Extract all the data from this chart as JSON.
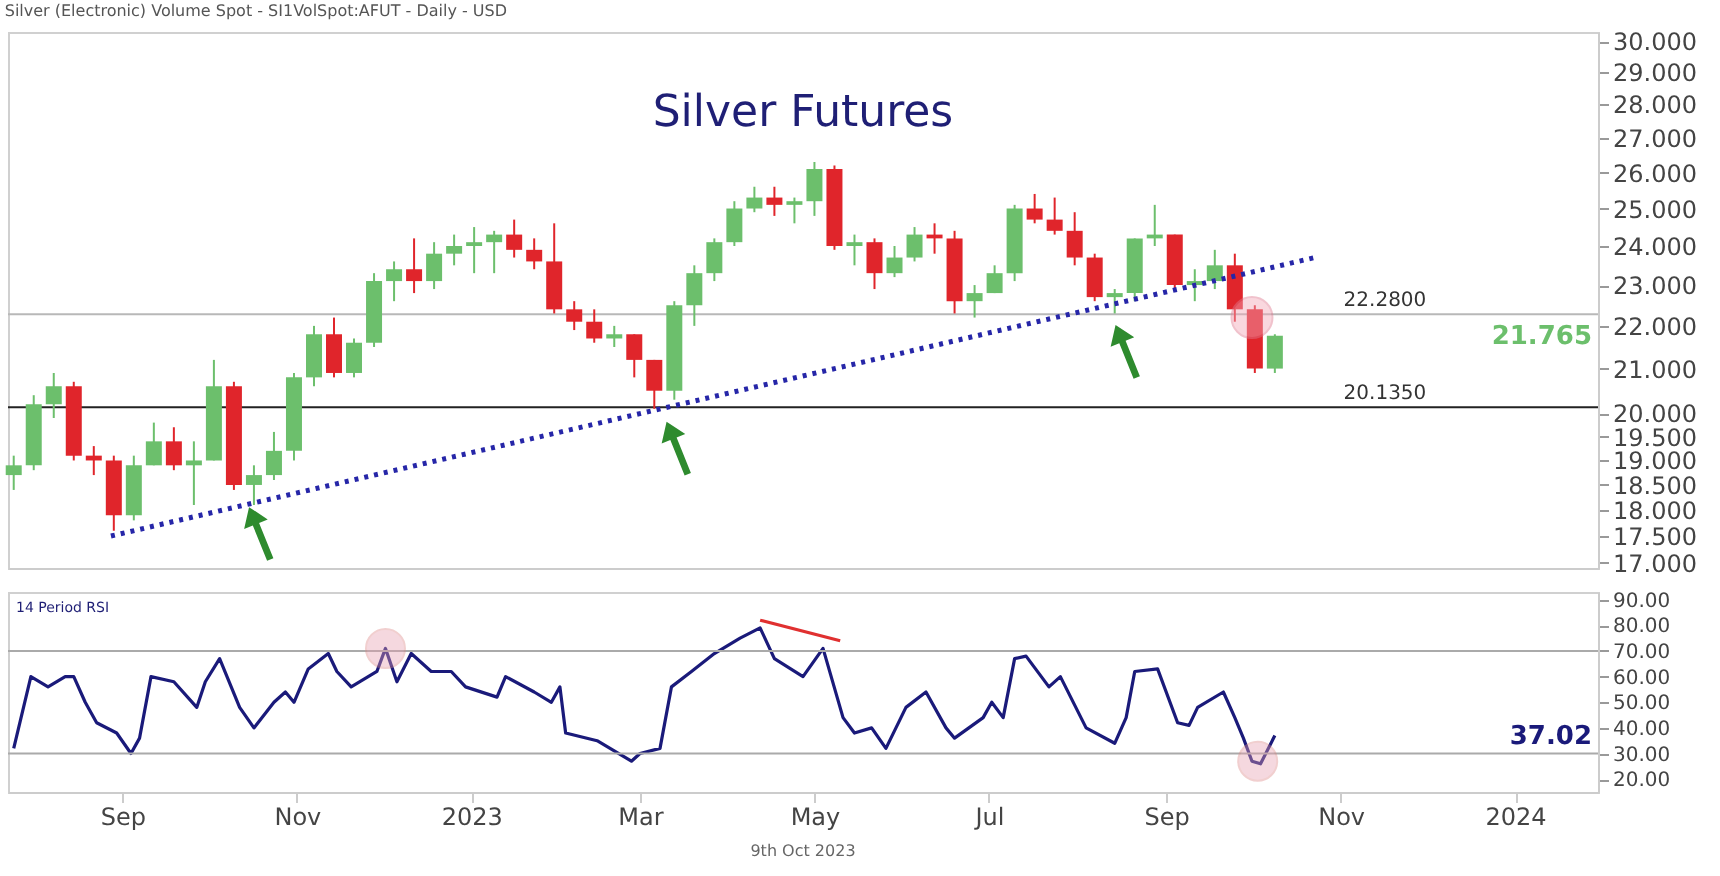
{
  "chart_data": [
    {
      "type": "candlestick",
      "subtitle": "Silver (Electronic) Volume Spot - SI1VolSpot:AFUT - Daily - USD",
      "title": "Silver Futures",
      "x": [
        "2022-07-25",
        "2022-08-01",
        "2022-08-08",
        "2022-08-15",
        "2022-08-22",
        "2022-08-29",
        "2022-09-05",
        "2022-09-12",
        "2022-09-19",
        "2022-09-26",
        "2022-10-03",
        "2022-10-10",
        "2022-10-17",
        "2022-10-24",
        "2022-10-31",
        "2022-11-07",
        "2022-11-14",
        "2022-11-21",
        "2022-11-28",
        "2022-12-05",
        "2022-12-12",
        "2022-12-19",
        "2022-12-26",
        "2023-01-02",
        "2023-01-09",
        "2023-01-16",
        "2023-01-23",
        "2023-01-30",
        "2023-02-06",
        "2023-02-13",
        "2023-02-20",
        "2023-02-27",
        "2023-03-06",
        "2023-03-13",
        "2023-03-20",
        "2023-03-27",
        "2023-04-03",
        "2023-04-10",
        "2023-04-17",
        "2023-04-24",
        "2023-05-01",
        "2023-05-08",
        "2023-05-15",
        "2023-05-22",
        "2023-05-29",
        "2023-06-05",
        "2023-06-12",
        "2023-06-19",
        "2023-06-26",
        "2023-07-03",
        "2023-07-10",
        "2023-07-17",
        "2023-07-24",
        "2023-07-31",
        "2023-08-07",
        "2023-08-14",
        "2023-08-21",
        "2023-08-28",
        "2023-09-04",
        "2023-09-11",
        "2023-09-18",
        "2023-09-25",
        "2023-10-02",
        "2023-10-09"
      ],
      "ohlc": [
        [
          18.7,
          19.1,
          18.4,
          18.9
        ],
        [
          18.9,
          20.4,
          18.8,
          20.2
        ],
        [
          20.2,
          20.9,
          19.9,
          20.6
        ],
        [
          20.6,
          20.7,
          19.0,
          19.1
        ],
        [
          19.1,
          19.3,
          18.7,
          19.0
        ],
        [
          19.0,
          19.1,
          17.6,
          17.9
        ],
        [
          17.9,
          19.1,
          17.8,
          18.9
        ],
        [
          18.9,
          19.8,
          18.9,
          19.4
        ],
        [
          19.4,
          19.7,
          18.8,
          18.9
        ],
        [
          18.9,
          19.4,
          18.1,
          19.0
        ],
        [
          19.0,
          21.2,
          19.0,
          20.6
        ],
        [
          20.6,
          20.7,
          18.4,
          18.5
        ],
        [
          18.5,
          18.9,
          18.1,
          18.7
        ],
        [
          18.7,
          19.6,
          18.6,
          19.2
        ],
        [
          19.2,
          20.9,
          19.0,
          20.8
        ],
        [
          20.8,
          22.0,
          20.6,
          21.8
        ],
        [
          21.8,
          22.2,
          20.8,
          20.9
        ],
        [
          20.9,
          21.7,
          20.8,
          21.6
        ],
        [
          21.6,
          23.3,
          21.5,
          23.1
        ],
        [
          23.1,
          23.6,
          22.6,
          23.4
        ],
        [
          23.4,
          24.2,
          22.8,
          23.1
        ],
        [
          23.1,
          24.1,
          22.9,
          23.8
        ],
        [
          23.8,
          24.3,
          23.5,
          24.0
        ],
        [
          24.0,
          24.5,
          23.3,
          24.1
        ],
        [
          24.1,
          24.4,
          23.3,
          24.3
        ],
        [
          24.3,
          24.7,
          23.7,
          23.9
        ],
        [
          23.9,
          24.2,
          23.4,
          23.6
        ],
        [
          23.6,
          24.6,
          22.3,
          22.4
        ],
        [
          22.4,
          22.6,
          21.9,
          22.1
        ],
        [
          22.1,
          22.4,
          21.6,
          21.7
        ],
        [
          21.7,
          22.0,
          21.5,
          21.8
        ],
        [
          21.8,
          21.8,
          20.8,
          21.2
        ],
        [
          21.2,
          21.2,
          20.1,
          20.5
        ],
        [
          20.5,
          22.6,
          20.3,
          22.5
        ],
        [
          22.5,
          23.5,
          22.0,
          23.3
        ],
        [
          23.3,
          24.2,
          23.1,
          24.1
        ],
        [
          24.1,
          25.2,
          24.0,
          25.0
        ],
        [
          25.0,
          25.6,
          24.9,
          25.3
        ],
        [
          25.3,
          25.6,
          24.8,
          25.1
        ],
        [
          25.1,
          25.3,
          24.6,
          25.2
        ],
        [
          25.2,
          26.3,
          24.8,
          26.1
        ],
        [
          26.1,
          26.2,
          23.9,
          24.0
        ],
        [
          24.0,
          24.3,
          23.5,
          24.1
        ],
        [
          24.1,
          24.2,
          22.9,
          23.3
        ],
        [
          23.3,
          24.0,
          23.2,
          23.7
        ],
        [
          23.7,
          24.5,
          23.6,
          24.3
        ],
        [
          24.3,
          24.6,
          23.8,
          24.2
        ],
        [
          24.2,
          24.4,
          22.3,
          22.6
        ],
        [
          22.6,
          23.0,
          22.2,
          22.8
        ],
        [
          22.8,
          23.5,
          22.8,
          23.3
        ],
        [
          23.3,
          25.1,
          23.1,
          25.0
        ],
        [
          25.0,
          25.4,
          24.6,
          24.7
        ],
        [
          24.7,
          25.3,
          24.3,
          24.4
        ],
        [
          24.4,
          24.9,
          23.5,
          23.7
        ],
        [
          23.7,
          23.8,
          22.6,
          22.7
        ],
        [
          22.7,
          22.9,
          22.3,
          22.8
        ],
        [
          22.8,
          24.2,
          22.6,
          24.2
        ],
        [
          24.2,
          25.1,
          24.0,
          24.3
        ],
        [
          24.3,
          24.3,
          22.9,
          23.0
        ],
        [
          23.0,
          23.4,
          22.6,
          23.1
        ],
        [
          23.1,
          23.9,
          22.9,
          23.5
        ],
        [
          23.5,
          23.8,
          22.1,
          22.4
        ],
        [
          22.4,
          22.5,
          20.9,
          21.0
        ],
        [
          21.0,
          21.8,
          20.9,
          21.765
        ]
      ],
      "colors": [
        "#6cbf6c",
        "#6cbf6c",
        "#6cbf6c",
        "#e0252b",
        "#e0252b",
        "#e0252b",
        "#6cbf6c",
        "#6cbf6c",
        "#e0252b",
        "#6cbf6c",
        "#6cbf6c",
        "#e0252b",
        "#6cbf6c",
        "#6cbf6c",
        "#6cbf6c",
        "#6cbf6c",
        "#e0252b",
        "#6cbf6c",
        "#6cbf6c",
        "#6cbf6c",
        "#e0252b",
        "#6cbf6c",
        "#6cbf6c",
        "#6cbf6c",
        "#6cbf6c",
        "#e0252b",
        "#e0252b",
        "#e0252b",
        "#e0252b",
        "#e0252b",
        "#6cbf6c",
        "#e0252b",
        "#e0252b",
        "#6cbf6c",
        "#6cbf6c",
        "#6cbf6c",
        "#6cbf6c",
        "#6cbf6c",
        "#e0252b",
        "#6cbf6c",
        "#6cbf6c",
        "#e0252b",
        "#6cbf6c",
        "#e0252b",
        "#6cbf6c",
        "#6cbf6c",
        "#e0252b",
        "#e0252b",
        "#6cbf6c",
        "#6cbf6c",
        "#6cbf6c",
        "#e0252b",
        "#e0252b",
        "#e0252b",
        "#e0252b",
        "#6cbf6c",
        "#6cbf6c",
        "#6cbf6c",
        "#e0252b",
        "#6cbf6c",
        "#6cbf6c",
        "#e0252b",
        "#e0252b",
        "#6cbf6c"
      ],
      "series": [
        {
          "type": "line",
          "x": [
            "2022-08-28",
            "2023-10-23"
          ],
          "values": [
            17.5,
            23.7
          ],
          "color": "#2626a8",
          "line_style": "dotted"
        }
      ],
      "log": true,
      "ylim": [
        16.9,
        30.3
      ],
      "yticks": [
        {
          "value": 17,
          "label": "17.000"
        },
        {
          "value": 17.5,
          "label": "17.500"
        },
        {
          "value": 18,
          "label": "18.000"
        },
        {
          "value": 18.5,
          "label": "18.500"
        },
        {
          "value": 19,
          "label": "19.000"
        },
        {
          "value": 19.5,
          "label": "19.500"
        },
        {
          "value": 20,
          "label": "20.000"
        },
        {
          "value": 21,
          "label": "21.000"
        },
        {
          "value": 22,
          "label": "22.000"
        },
        {
          "value": 23,
          "label": "23.000"
        },
        {
          "value": 24,
          "label": "24.000"
        },
        {
          "value": 25,
          "label": "25.000"
        },
        {
          "value": 26,
          "label": "26.000"
        },
        {
          "value": 27,
          "label": "27.000"
        },
        {
          "value": 28,
          "label": "28.000"
        },
        {
          "value": 29,
          "label": "29.000"
        },
        {
          "value": 30,
          "label": "30.000"
        }
      ],
      "xlim": [
        "2022-07-23",
        "2024-01-30"
      ],
      "tick_labels": "y",
      "ref_lines": [
        {
          "axis": "y",
          "value": 22.28,
          "label": "22.2800",
          "color": "#b8b8b8"
        },
        {
          "axis": "y",
          "value": 20.135,
          "label": "20.1350",
          "color": "#222222"
        }
      ],
      "annotations": [
        "21.765"
      ]
    },
    {
      "type": "line",
      "title": "14 Period RSI",
      "x": [
        "2022-07-25",
        "2022-07-31",
        "2022-08-06",
        "2022-08-12",
        "2022-08-15",
        "2022-08-19",
        "2022-08-23",
        "2022-08-30",
        "2022-09-04",
        "2022-09-07",
        "2022-09-11",
        "2022-09-19",
        "2022-09-27",
        "2022-09-30",
        "2022-10-05",
        "2022-10-12",
        "2022-10-17",
        "2022-10-24",
        "2022-10-28",
        "2022-10-31",
        "2022-11-05",
        "2022-11-12",
        "2022-11-15",
        "2022-11-20",
        "2022-11-29",
        "2022-12-02",
        "2022-12-06",
        "2022-12-11",
        "2022-12-18",
        "2022-12-25",
        "2022-12-30",
        "2023-01-10",
        "2023-01-13",
        "2023-01-23",
        "2023-01-29",
        "2023-02-01",
        "2023-02-03",
        "2023-02-14",
        "2023-02-26",
        "2023-03-01",
        "2023-03-08",
        "2023-03-12",
        "2023-03-19",
        "2023-03-27",
        "2023-04-05",
        "2023-04-12",
        "2023-04-17",
        "2023-04-27",
        "2023-05-04",
        "2023-05-11",
        "2023-05-15",
        "2023-05-21",
        "2023-05-26",
        "2023-06-02",
        "2023-06-09",
        "2023-06-16",
        "2023-06-19",
        "2023-06-29",
        "2023-07-02",
        "2023-07-06",
        "2023-07-10",
        "2023-07-14",
        "2023-07-22",
        "2023-07-26",
        "2023-08-04",
        "2023-08-14",
        "2023-08-18",
        "2023-08-21",
        "2023-08-29",
        "2023-09-05",
        "2023-09-09",
        "2023-09-12",
        "2023-09-21",
        "2023-09-25",
        "2023-09-28",
        "2023-10-01",
        "2023-10-04",
        "2023-10-09"
      ],
      "series": [
        {
          "color": "#1a1a7a",
          "values": [
            32,
            60,
            56,
            60,
            60,
            50,
            42,
            38,
            30,
            36,
            60,
            58,
            48,
            58,
            67,
            48,
            40,
            50,
            54,
            50,
            63,
            69,
            62,
            56,
            62,
            71,
            58,
            69,
            62,
            62,
            56,
            52,
            60,
            54,
            50,
            56,
            38,
            35,
            27,
            30,
            32,
            56,
            62,
            69,
            75,
            79,
            67,
            60,
            71,
            44,
            38,
            40,
            32,
            48,
            54,
            40,
            36,
            44,
            50,
            44,
            67,
            68,
            56,
            60,
            40,
            34,
            44,
            62,
            63,
            42,
            41,
            48,
            54,
            44,
            36,
            27,
            26,
            37
          ]
        },
        {
          "type": "line",
          "x": [
            "2023-04-12",
            "2023-05-10"
          ],
          "values": [
            82,
            74
          ],
          "color": "#e03030"
        }
      ],
      "ylim": [
        15,
        93
      ],
      "yticks": [
        {
          "value": 20,
          "label": "20.00"
        },
        {
          "value": 30,
          "label": "30.00"
        },
        {
          "value": 40,
          "label": "40.00"
        },
        {
          "value": 50,
          "label": "50.00"
        },
        {
          "value": 60,
          "label": "60.00"
        },
        {
          "value": 70,
          "label": "70.00"
        },
        {
          "value": 80,
          "label": "80.00"
        },
        {
          "value": 90,
          "label": "90.00"
        }
      ],
      "xlim": [
        "2022-07-23",
        "2024-01-30"
      ],
      "xticks": [
        {
          "value": "2022-09",
          "label": "Sep"
        },
        {
          "value": "2022-11",
          "label": "Nov"
        },
        {
          "value": "2023",
          "label": "2023"
        },
        {
          "value": "2023-03",
          "label": "Mar"
        },
        {
          "value": "2023-05",
          "label": "May"
        },
        {
          "value": "2023-07",
          "label": "Jul"
        },
        {
          "value": "2023-09",
          "label": "Sep"
        },
        {
          "value": "2023-11",
          "label": "Nov"
        },
        {
          "value": "2024",
          "label": "2024"
        }
      ],
      "ref_lines": [
        {
          "axis": "y",
          "value": 70,
          "color": "#aaaaaa"
        },
        {
          "axis": "y",
          "value": 30,
          "color": "#aaaaaa"
        }
      ],
      "annotations": [
        "37.02",
        "9th Oct 2023"
      ]
    }
  ]
}
